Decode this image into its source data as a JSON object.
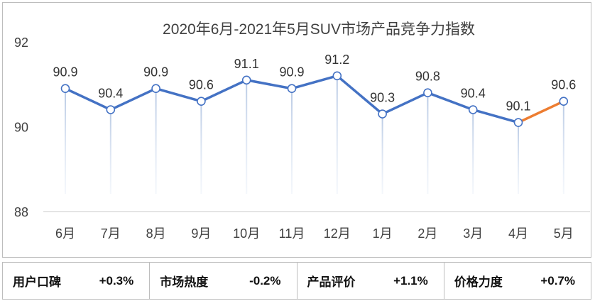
{
  "chart_data": {
    "type": "line",
    "title": "2020年6月-2021年5月SUV市场产品竞争力指数",
    "categories": [
      "6月",
      "7月",
      "8月",
      "9月",
      "10月",
      "11月",
      "12月",
      "1月",
      "2月",
      "3月",
      "4月",
      "5月"
    ],
    "series": [
      {
        "values": [
          90.9,
          90.4,
          90.9,
          90.6,
          91.1,
          90.9,
          91.2,
          90.3,
          90.8,
          90.4,
          90.1,
          90.6
        ]
      }
    ],
    "data_labels": [
      "90.9",
      "90.4",
      "90.9",
      "90.6",
      "91.1",
      "90.9",
      "91.2",
      "90.3",
      "90.8",
      "90.4",
      "90.1",
      "90.6"
    ],
    "yticks": [
      "88",
      "90",
      "92"
    ],
    "ytick_values": [
      88,
      90,
      92
    ],
    "ylim": [
      88,
      92
    ],
    "grid": false,
    "legend": "none",
    "colors": {
      "line": "#4472c4",
      "last_segment": "#ed7d31",
      "drop_line": "#c5d3e8"
    }
  },
  "stats": [
    {
      "label": "用户口碑",
      "value": "+0.3%"
    },
    {
      "label": "市场热度",
      "value": "-0.2%"
    },
    {
      "label": "产品评价",
      "value": "+1.1%"
    },
    {
      "label": "价格力度",
      "value": "+0.7%"
    }
  ]
}
